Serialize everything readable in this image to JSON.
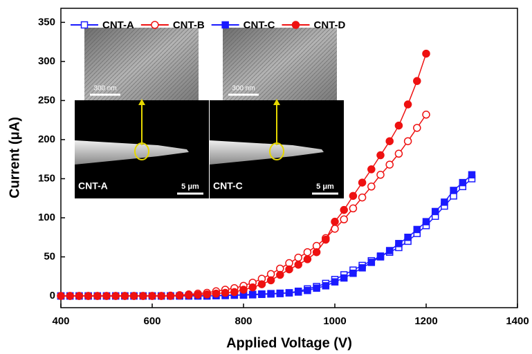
{
  "chart_data": {
    "type": "line",
    "x_label": "Applied Voltage (V)",
    "y_label": "Current (μA)",
    "xlim": [
      400,
      1400
    ],
    "ylim": [
      -15,
      368
    ],
    "xticks": [
      400,
      600,
      800,
      1000,
      1200,
      1400
    ],
    "yticks": [
      0,
      50,
      100,
      150,
      200,
      250,
      300,
      350
    ],
    "legend": "top-left",
    "series": [
      {
        "name": "CNT-A",
        "color": "#1a1aff",
        "marker": "square",
        "filled": false,
        "x": [
          400,
          420,
          440,
          460,
          480,
          500,
          520,
          540,
          560,
          580,
          600,
          620,
          640,
          660,
          680,
          700,
          720,
          740,
          760,
          780,
          800,
          820,
          840,
          860,
          880,
          900,
          920,
          940,
          960,
          980,
          1000,
          1020,
          1040,
          1060,
          1080,
          1100,
          1120,
          1140,
          1160,
          1180,
          1200,
          1220,
          1240,
          1260,
          1280,
          1300
        ],
        "values": [
          0,
          0,
          0,
          0,
          0,
          0,
          0,
          0,
          0,
          0,
          0,
          0,
          0,
          0,
          0,
          0,
          0,
          0.3,
          0.5,
          1,
          1,
          1.5,
          2,
          2.5,
          3,
          4,
          6,
          9,
          12,
          16,
          21,
          27,
          33,
          39,
          45,
          51,
          56,
          62,
          70,
          80,
          90,
          102,
          115,
          128,
          140,
          150
        ]
      },
      {
        "name": "CNT-B",
        "color": "#ee1111",
        "marker": "circle",
        "filled": false,
        "x": [
          400,
          420,
          440,
          460,
          480,
          500,
          520,
          540,
          560,
          580,
          600,
          620,
          640,
          660,
          680,
          700,
          720,
          740,
          760,
          780,
          800,
          820,
          840,
          860,
          880,
          900,
          920,
          940,
          960,
          980,
          1000,
          1020,
          1040,
          1060,
          1080,
          1100,
          1120,
          1140,
          1160,
          1180,
          1200
        ],
        "values": [
          0,
          0,
          0,
          0,
          0,
          0,
          0,
          0,
          0,
          0,
          0,
          0,
          0.5,
          1,
          2,
          3,
          4,
          6,
          8,
          10,
          13,
          17,
          22,
          28,
          35,
          42,
          49,
          56,
          64,
          74,
          86,
          98,
          112,
          126,
          140,
          155,
          168,
          182,
          198,
          215,
          232
        ]
      },
      {
        "name": "CNT-C",
        "color": "#1a1aff",
        "marker": "square",
        "filled": true,
        "x": [
          400,
          420,
          440,
          460,
          480,
          500,
          520,
          540,
          560,
          580,
          600,
          620,
          640,
          660,
          680,
          700,
          720,
          740,
          760,
          780,
          800,
          820,
          840,
          860,
          880,
          900,
          920,
          940,
          960,
          980,
          1000,
          1020,
          1040,
          1060,
          1080,
          1100,
          1120,
          1140,
          1160,
          1180,
          1200,
          1220,
          1240,
          1260,
          1280,
          1300
        ],
        "values": [
          0,
          0,
          0,
          0,
          0,
          0,
          0,
          0,
          0,
          0,
          0,
          0,
          0,
          0,
          0,
          0,
          0,
          0.5,
          1,
          1,
          1.5,
          2,
          2.5,
          3,
          3.5,
          4,
          5,
          7,
          10,
          13,
          18,
          23,
          29,
          36,
          43,
          50,
          58,
          67,
          75,
          85,
          95,
          108,
          120,
          135,
          145,
          155
        ]
      },
      {
        "name": "CNT-D",
        "color": "#ee1111",
        "marker": "circle",
        "filled": true,
        "x": [
          400,
          420,
          440,
          460,
          480,
          500,
          520,
          540,
          560,
          580,
          600,
          620,
          640,
          660,
          680,
          700,
          720,
          740,
          760,
          780,
          800,
          820,
          840,
          860,
          880,
          900,
          920,
          940,
          960,
          980,
          1000,
          1020,
          1040,
          1060,
          1080,
          1100,
          1120,
          1140,
          1160,
          1180,
          1200
        ],
        "values": [
          0,
          0,
          0,
          0,
          0,
          0,
          0,
          0,
          0,
          0,
          0,
          0,
          0,
          0.5,
          1,
          1.5,
          2,
          3,
          4,
          5,
          8,
          11,
          15,
          20,
          27,
          34,
          40,
          47,
          56,
          72,
          95,
          110,
          128,
          145,
          162,
          180,
          198,
          218,
          245,
          275,
          310
        ]
      }
    ],
    "insets": [
      {
        "label": "CNT-A",
        "scale_top": "300 nm",
        "scale_bottom": "5 μm"
      },
      {
        "label": "CNT-C",
        "scale_top": "300 nm",
        "scale_bottom": "5 μm"
      }
    ]
  }
}
